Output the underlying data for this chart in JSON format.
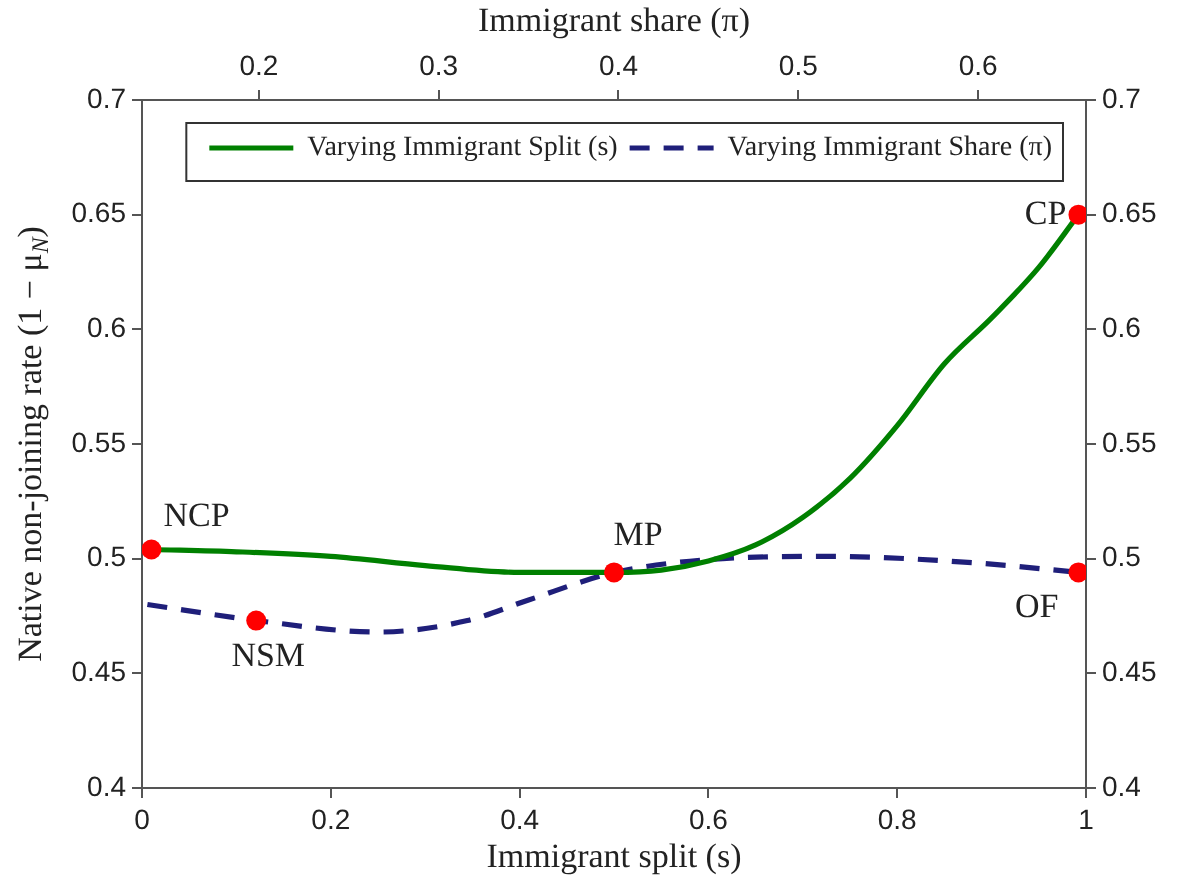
{
  "chart_data": {
    "type": "line",
    "xlabel": "Immigrant split (s)",
    "x2label": "Immigrant share (π)",
    "ylabel": "Native non-joining rate (1 − μ$_{N}$)",
    "xlim": [
      0,
      1
    ],
    "xticks": [
      0,
      0.2,
      0.4,
      0.6,
      0.8,
      1
    ],
    "x2lim": [
      0.135,
      0.66
    ],
    "x2ticks": [
      0.2,
      0.3,
      0.4,
      0.5,
      0.6
    ],
    "ylim": [
      0.4,
      0.7
    ],
    "yticks": [
      0.4,
      0.45,
      0.5,
      0.55,
      0.6,
      0.65,
      0.7
    ],
    "y2lim": [
      0.4,
      0.7
    ],
    "y2ticks": [
      0.4,
      0.45,
      0.5,
      0.55,
      0.6,
      0.65,
      0.7
    ],
    "grid": false,
    "legend": "top right",
    "series": [
      {
        "name": "Varying Immigrant Split (s)",
        "color": "#008000",
        "line_style": "solid",
        "marker": "none",
        "x": [
          0.01,
          0.1,
          0.2,
          0.3,
          0.4,
          0.5,
          0.55,
          0.6,
          0.65,
          0.7,
          0.75,
          0.8,
          0.85,
          0.9,
          0.95,
          0.992
        ],
        "values": [
          0.504,
          0.503,
          0.501,
          0.497,
          0.494,
          0.494,
          0.495,
          0.499,
          0.506,
          0.518,
          0.535,
          0.558,
          0.585,
          0.605,
          0.627,
          0.65
        ]
      },
      {
        "name": "Varying Immigrant Share (π)",
        "color": "#1f1f7a",
        "line_style": "dashed",
        "marker": "none",
        "axis": "x2",
        "x": [
          0.138,
          0.199,
          0.266,
          0.316,
          0.35,
          0.398,
          0.458,
          0.517,
          0.601,
          0.656
        ],
        "values": [
          0.48,
          0.473,
          0.468,
          0.473,
          0.482,
          0.494,
          0.5,
          0.501,
          0.498,
          0.494
        ]
      },
      {
        "type": "scatter",
        "color": "#ff0000",
        "marker": "circle",
        "x": [
          0.01,
          0.121,
          0.5,
          0.992,
          0.992
        ],
        "values": [
          0.504,
          0.473,
          0.494,
          0.65,
          0.494
        ]
      }
    ],
    "annotations": [
      {
        "text": "NCP",
        "x": 0.01,
        "y": 0.504
      },
      {
        "text": "NSM",
        "x": 0.121,
        "y": 0.473
      },
      {
        "text": "MP",
        "x": 0.5,
        "y": 0.494
      },
      {
        "text": "CP",
        "x": 0.992,
        "y": 0.65
      },
      {
        "text": "OF",
        "x": 0.992,
        "y": 0.494
      }
    ]
  }
}
